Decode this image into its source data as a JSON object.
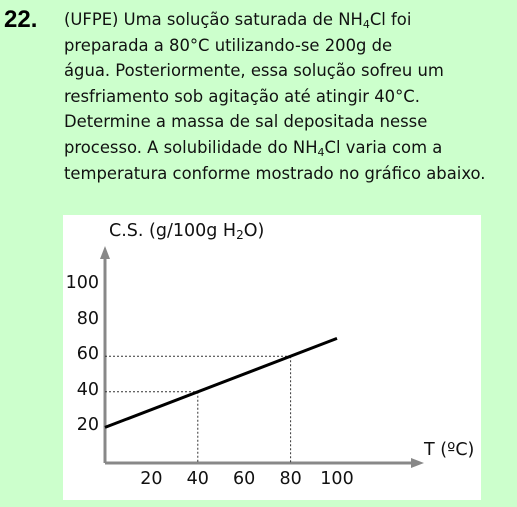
{
  "question": {
    "number": "22.",
    "lines": [
      [
        {
          "t": "(UFPE) Uma solução saturada de NH"
        },
        {
          "t": "4",
          "sub": true
        },
        {
          "t": "Cl foi"
        }
      ],
      [
        {
          "t": "preparada a 80°C utilizando-se 200g de"
        }
      ],
      [
        {
          "t": "água. Posteriormente, essa solução sofreu um"
        }
      ],
      [
        {
          "t": "resfriamento sob agitação até atingir 40°C."
        }
      ],
      [
        {
          "t": "Determine a massa de sal depositada nesse"
        }
      ],
      [
        {
          "t": "processo. A solubilidade do NH"
        },
        {
          "t": "4",
          "sub": true
        },
        {
          "t": "Cl varia com a"
        }
      ],
      [
        {
          "t": "temperatura conforme mostrado no gráfico abaixo."
        }
      ]
    ]
  },
  "chart_data": {
    "type": "line",
    "ylabel": "C.S. (g/100g H",
    "ylabel_sub": "2",
    "ylabel_end": "O)",
    "xlabel": "T (ºC)",
    "x_ticks": [
      "20",
      "40",
      "60",
      "80",
      "100"
    ],
    "y_ticks": [
      "20",
      "40",
      "60",
      "80",
      "100"
    ],
    "series": [
      {
        "x": [
          0,
          100
        ],
        "y": [
          20,
          70
        ]
      }
    ],
    "guide_points": [
      {
        "x": 40,
        "y": 40
      },
      {
        "x": 80,
        "y": 60
      }
    ],
    "line_color": "#000000",
    "axis_color": "#888888"
  }
}
